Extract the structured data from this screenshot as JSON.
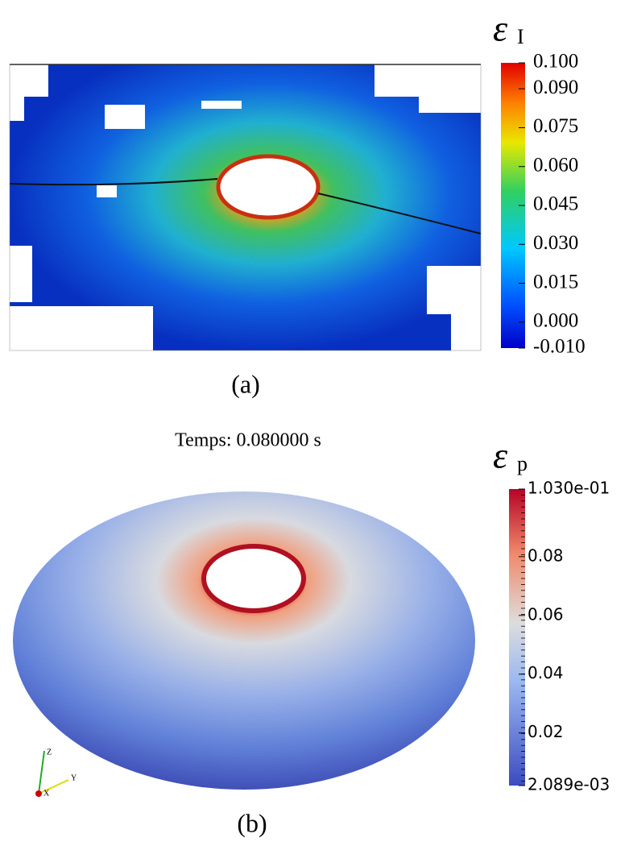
{
  "panels": [
    {
      "caption": "(a)",
      "colorbar": {
        "symbol": "ε",
        "subscript": "I",
        "ticks": [
          {
            "value": 0.1,
            "label": "0.100"
          },
          {
            "value": 0.09,
            "label": "0.090"
          },
          {
            "value": 0.075,
            "label": "0.075"
          },
          {
            "value": 0.06,
            "label": "0.060"
          },
          {
            "value": 0.045,
            "label": "0.045"
          },
          {
            "value": 0.03,
            "label": "0.030"
          },
          {
            "value": 0.015,
            "label": "0.015"
          },
          {
            "value": 0,
            "label": "0.000"
          },
          {
            "value": -0.01,
            "label": "-0.010"
          }
        ]
      }
    },
    {
      "caption": "(b)",
      "title": "Temps: 0.080000 s",
      "colorbar": {
        "symbol": "ε",
        "subscript": "p",
        "ticks": [
          {
            "value": 0.103,
            "label": "1.030e-01"
          },
          0.08,
          0.06,
          0.04,
          0.02,
          {
            "value": 0.002089,
            "label": "2.089e-03"
          }
        ]
      }
    }
  ],
  "triad": [
    "Z",
    "Y",
    "X"
  ]
}
